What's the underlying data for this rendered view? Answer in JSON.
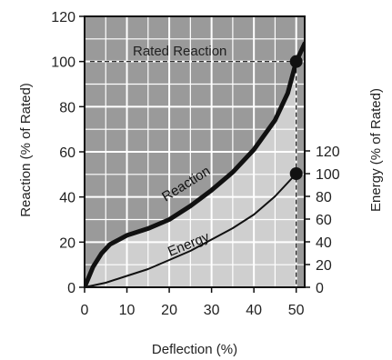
{
  "chart_data": {
    "type": "line",
    "xlabel": "Deflection (%)",
    "ylabel": "Reaction (% of Rated)",
    "y2label": "Energy (% of Rated)",
    "xlim": [
      0,
      52
    ],
    "ylim": [
      0,
      120
    ],
    "y2lim": [
      0,
      120
    ],
    "x_ticks": [
      "0",
      "10",
      "20",
      "30",
      "40",
      "50"
    ],
    "y_ticks": [
      "0",
      "20",
      "40",
      "60",
      "80",
      "100",
      "120"
    ],
    "y2_ticks": [
      "0",
      "20",
      "40",
      "60",
      "80",
      "100",
      "120"
    ],
    "grid": true,
    "legend": "none",
    "reference_line": {
      "label": "Rated Reaction",
      "y": 100,
      "x": 50
    },
    "series": [
      {
        "name": "Reaction",
        "axis": "left",
        "x": [
          0,
          2,
          4,
          6,
          8,
          10,
          15,
          20,
          25,
          30,
          35,
          40,
          45,
          48,
          50,
          52
        ],
        "y": [
          0,
          9,
          15,
          19,
          21,
          23,
          26,
          30,
          36,
          43,
          51,
          61,
          74,
          86,
          100,
          108
        ],
        "marker": {
          "x": 50,
          "y": 100
        }
      },
      {
        "name": "Energy",
        "axis": "right",
        "x": [
          0,
          5,
          10,
          15,
          20,
          25,
          30,
          35,
          40,
          45,
          50
        ],
        "y": [
          0,
          4,
          10,
          16,
          24,
          32,
          42,
          52,
          64,
          80,
          100
        ],
        "marker": {
          "x": 50,
          "y": 100
        }
      }
    ],
    "colors": {
      "plot_dark": "#9a9a9a",
      "plot_light": "#cfcfcf",
      "grid": "#ffffff",
      "line": "#111111"
    }
  }
}
